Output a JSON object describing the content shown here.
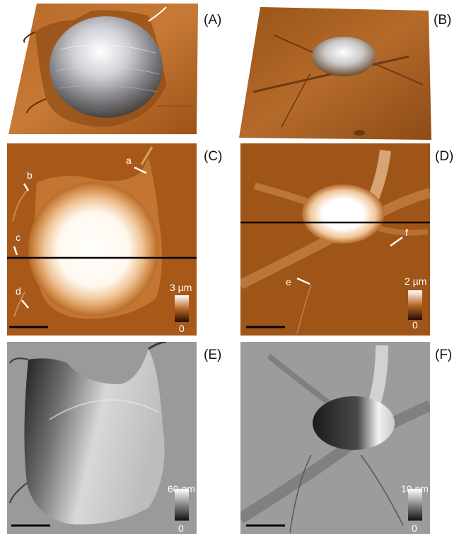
{
  "panels": {
    "A": {
      "label": "(A)"
    },
    "B": {
      "label": "(B)"
    },
    "C": {
      "label": "(C)",
      "scale_max": "3 µm",
      "scale_min": "0",
      "markers": [
        "a",
        "b",
        "c",
        "d"
      ]
    },
    "D": {
      "label": "(D)",
      "scale_max": "2 µm",
      "scale_min": "0",
      "markers": [
        "e",
        "f"
      ]
    },
    "E": {
      "label": "(E)",
      "scale_max": "60 nm",
      "scale_min": "0"
    },
    "F": {
      "label": "(F)",
      "scale_max": "10 nm",
      "scale_min": "0"
    }
  },
  "colors": {
    "height_dark": "#3a1600",
    "height_mid": "#a5581c",
    "height_light": "#ffffff",
    "error_gray": "#9a9a9a"
  }
}
